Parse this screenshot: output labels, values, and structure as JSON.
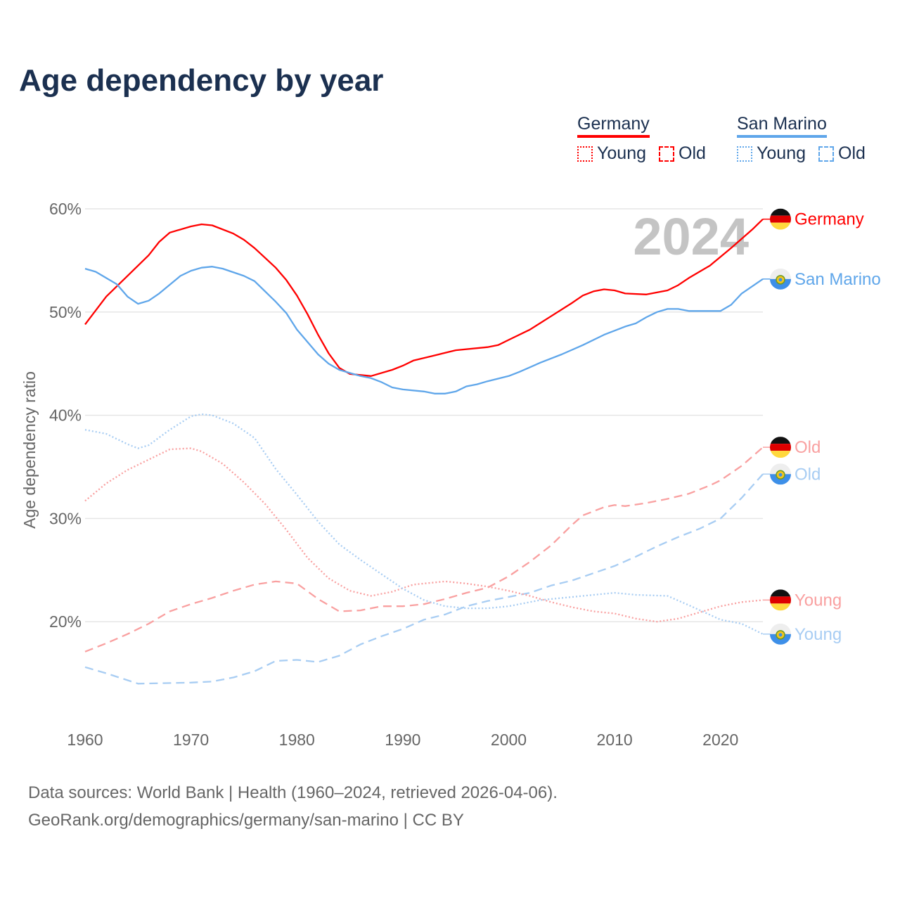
{
  "title": "Age dependency by year",
  "legend": {
    "groups": [
      {
        "name": "Germany",
        "young": "Young",
        "old": "Old",
        "color": "#ff0000"
      },
      {
        "name": "San Marino",
        "young": "Young",
        "old": "Old",
        "color": "#5fa6ea"
      }
    ]
  },
  "source": {
    "line1": "Data sources: World Bank | Health (1960–2024, retrieved 2026-04-06).",
    "line2": "GeoRank.org/demographics/germany/san-marino | CC BY"
  },
  "chart_data": {
    "type": "line",
    "title": "Age dependency by year",
    "ylabel": "Age dependency ratio",
    "xlabel": "",
    "year_label": "2024",
    "xlim": [
      1960,
      2024
    ],
    "ylim": [
      10,
      60
    ],
    "xticks": [
      "1960",
      "1970",
      "1980",
      "1990",
      "2000",
      "2010",
      "2020"
    ],
    "yticks": [
      {
        "v": 60,
        "label": "60%"
      },
      {
        "v": 50,
        "label": "50%"
      },
      {
        "v": 40,
        "label": "40%"
      },
      {
        "v": 30,
        "label": "30%"
      },
      {
        "v": 20,
        "label": "20%"
      }
    ],
    "grid": true,
    "series": [
      {
        "name": "Germany",
        "label": "Germany",
        "country": "germany",
        "style": "solid",
        "color": "#ff0000",
        "x": [
          1960,
          1962,
          1964,
          1966,
          1967,
          1968,
          1970,
          1971,
          1972,
          1974,
          1975,
          1976,
          1978,
          1979,
          1980,
          1981,
          1982,
          1983,
          1984,
          1985,
          1986,
          1987,
          1989,
          1990,
          1991,
          1993,
          1995,
          1998,
          1999,
          2000,
          2002,
          2004,
          2006,
          2007,
          2008,
          2009,
          2010,
          2011,
          2013,
          2015,
          2016,
          2017,
          2019,
          2021,
          2023,
          2024
        ],
        "y": [
          48.8,
          51.5,
          53.5,
          55.5,
          56.8,
          57.7,
          58.3,
          58.5,
          58.4,
          57.6,
          57.0,
          56.2,
          54.3,
          53.1,
          51.6,
          49.8,
          47.8,
          46.0,
          44.6,
          44.0,
          43.9,
          43.8,
          44.4,
          44.8,
          45.3,
          45.8,
          46.3,
          46.6,
          46.8,
          47.3,
          48.3,
          49.6,
          50.9,
          51.6,
          52.0,
          52.2,
          52.1,
          51.8,
          51.7,
          52.1,
          52.6,
          53.3,
          54.5,
          56.2,
          58.0,
          59.0
        ]
      },
      {
        "name": "San Marino",
        "label": "San Marino",
        "country": "sanmarino",
        "style": "solid",
        "color": "#5fa6ea",
        "x": [
          1960,
          1961,
          1963,
          1964,
          1965,
          1966,
          1967,
          1969,
          1970,
          1971,
          1972,
          1973,
          1975,
          1976,
          1978,
          1979,
          1980,
          1982,
          1983,
          1984,
          1986,
          1987,
          1988,
          1989,
          1990,
          1992,
          1993,
          1994,
          1995,
          1996,
          1997,
          1998,
          2000,
          2001,
          2003,
          2005,
          2007,
          2009,
          2011,
          2012,
          2013,
          2014,
          2015,
          2016,
          2017,
          2020,
          2021,
          2022,
          2024
        ],
        "y": [
          54.2,
          53.9,
          52.7,
          51.5,
          50.8,
          51.1,
          51.8,
          53.5,
          54.0,
          54.3,
          54.4,
          54.2,
          53.5,
          53.0,
          51.0,
          49.9,
          48.3,
          45.9,
          45.0,
          44.4,
          43.8,
          43.6,
          43.2,
          42.7,
          42.5,
          42.3,
          42.1,
          42.1,
          42.3,
          42.8,
          43.0,
          43.3,
          43.8,
          44.2,
          45.1,
          45.9,
          46.8,
          47.8,
          48.6,
          48.9,
          49.5,
          50.0,
          50.3,
          50.3,
          50.1,
          50.1,
          50.7,
          51.8,
          53.2
        ]
      },
      {
        "name": "Germany Old",
        "label": "Old",
        "country": "germany",
        "style": "dashed",
        "color": "#f9a0a0",
        "x": [
          1960,
          1962,
          1964,
          1966,
          1968,
          1970,
          1972,
          1974,
          1976,
          1978,
          1980,
          1982,
          1984,
          1986,
          1988,
          1990,
          1992,
          1994,
          1996,
          1998,
          2000,
          2002,
          2004,
          2006,
          2007,
          2009,
          2010,
          2011,
          2013,
          2015,
          2017,
          2019,
          2020,
          2022,
          2024
        ],
        "y": [
          17.1,
          17.9,
          18.8,
          19.8,
          21.0,
          21.7,
          22.3,
          23.0,
          23.6,
          23.9,
          23.7,
          22.2,
          21.0,
          21.1,
          21.5,
          21.5,
          21.7,
          22.2,
          22.8,
          23.3,
          24.4,
          25.8,
          27.4,
          29.4,
          30.3,
          31.1,
          31.3,
          31.2,
          31.5,
          31.9,
          32.4,
          33.2,
          33.7,
          35.1,
          36.9
        ]
      },
      {
        "name": "San Marino Old",
        "label": "Old",
        "country": "sanmarino",
        "style": "dashed",
        "color": "#a8cdf3",
        "x": [
          1960,
          1962,
          1965,
          1970,
          1972,
          1974,
          1976,
          1978,
          1980,
          1982,
          1984,
          1986,
          1988,
          1990,
          1992,
          1994,
          1996,
          1998,
          2000,
          2002,
          2004,
          2006,
          2008,
          2010,
          2012,
          2014,
          2016,
          2018,
          2020,
          2022,
          2024
        ],
        "y": [
          15.6,
          15.0,
          14.0,
          14.1,
          14.2,
          14.6,
          15.2,
          16.2,
          16.3,
          16.1,
          16.7,
          17.8,
          18.6,
          19.3,
          20.2,
          20.7,
          21.5,
          22.0,
          22.4,
          22.8,
          23.5,
          24.0,
          24.7,
          25.4,
          26.3,
          27.3,
          28.2,
          29.0,
          30.0,
          32.0,
          34.3
        ]
      },
      {
        "name": "Germany Young",
        "label": "Young",
        "country": "germany",
        "style": "dotted",
        "color": "#f9a0a0",
        "x": [
          1960,
          1962,
          1964,
          1966,
          1968,
          1970,
          1971,
          1973,
          1975,
          1977,
          1979,
          1981,
          1983,
          1985,
          1987,
          1989,
          1991,
          1994,
          1996,
          1998,
          2000,
          2002,
          2004,
          2006,
          2008,
          2010,
          2012,
          2014,
          2016,
          2018,
          2020,
          2022,
          2024
        ],
        "y": [
          31.7,
          33.4,
          34.7,
          35.7,
          36.7,
          36.8,
          36.5,
          35.3,
          33.5,
          31.4,
          28.9,
          26.2,
          24.2,
          23.0,
          22.5,
          22.9,
          23.6,
          23.9,
          23.7,
          23.4,
          23.0,
          22.5,
          21.9,
          21.4,
          21.0,
          20.8,
          20.3,
          20.0,
          20.3,
          20.9,
          21.5,
          21.9,
          22.1
        ]
      },
      {
        "name": "San Marino Young",
        "label": "Young",
        "country": "sanmarino",
        "style": "dotted",
        "color": "#a8cdf3",
        "x": [
          1960,
          1962,
          1964,
          1965,
          1966,
          1968,
          1970,
          1971,
          1972,
          1974,
          1976,
          1978,
          1980,
          1982,
          1984,
          1986,
          1988,
          1990,
          1992,
          1994,
          1996,
          1998,
          2000,
          2003,
          2006,
          2010,
          2012,
          2015,
          2017,
          2020,
          2022,
          2024
        ],
        "y": [
          38.6,
          38.2,
          37.2,
          36.8,
          37.1,
          38.6,
          39.9,
          40.1,
          40.0,
          39.2,
          37.8,
          34.8,
          32.3,
          29.7,
          27.5,
          26.0,
          24.6,
          23.2,
          22.1,
          21.5,
          21.3,
          21.3,
          21.5,
          22.1,
          22.4,
          22.8,
          22.6,
          22.5,
          21.6,
          20.2,
          19.8,
          18.8
        ]
      }
    ]
  }
}
